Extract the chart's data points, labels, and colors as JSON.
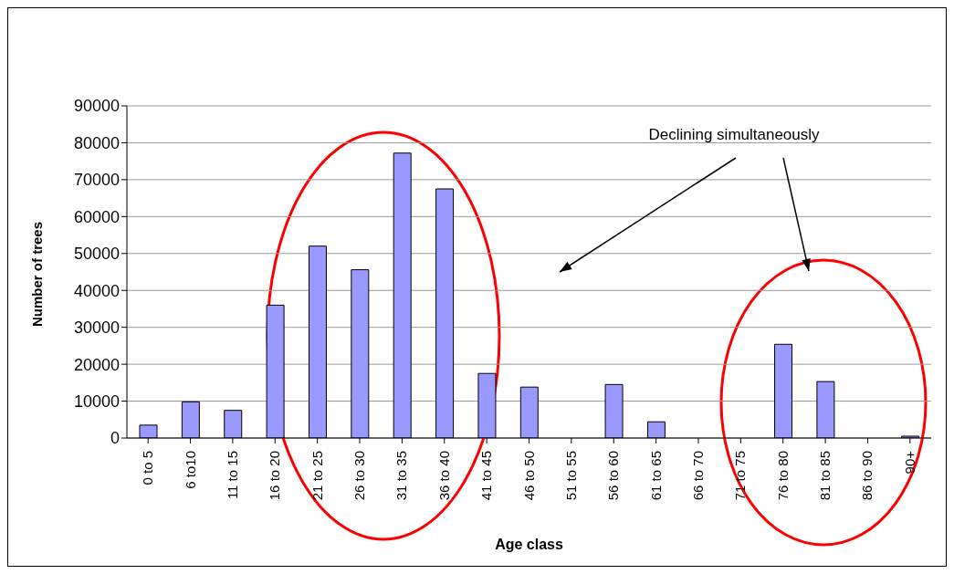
{
  "chart_data": {
    "type": "bar",
    "xlabel": "Age class",
    "ylabel": "Number of trees",
    "categories": [
      "0 to 5",
      "6 to10",
      "11 to 15",
      "16 to 20",
      "21 to 25",
      "26 to 30",
      "31 to 35",
      "36 to 40",
      "41 to 45",
      "46 to 50",
      "51 to 55",
      "56 to 60",
      "61 to 65",
      "66 to 70",
      "71 to 75",
      "76 to 80",
      "81 to 85",
      "86 to 90",
      "90+"
    ],
    "values": [
      3500,
      9800,
      7500,
      36000,
      52000,
      45600,
      77200,
      67500,
      17500,
      13800,
      0,
      14500,
      4400,
      0,
      0,
      25400,
      15300,
      0,
      500
    ],
    "color": "#9999ff",
    "ylim": [
      0,
      90000
    ],
    "yticks": [
      0,
      10000,
      20000,
      30000,
      40000,
      50000,
      60000,
      70000,
      80000,
      90000
    ],
    "grid": "y",
    "annotations": [
      "Declining simultaneously"
    ]
  }
}
